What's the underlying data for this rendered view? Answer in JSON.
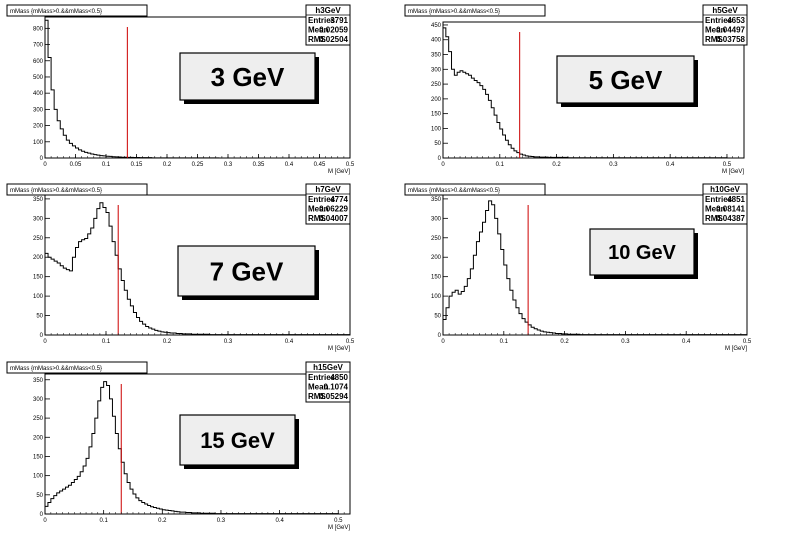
{
  "chart_data": [
    {
      "type": "histogram",
      "title": "mMass {mMass>0.&&mMass<0.5}",
      "xlabel": "M [GeV]",
      "xlim": [
        0,
        0.5
      ],
      "ylim": [
        0,
        870
      ],
      "xticks": [
        0,
        0.05,
        0.1,
        0.15,
        0.2,
        0.25,
        0.3,
        0.35,
        0.4,
        0.45,
        0.5
      ],
      "yticks": [
        0,
        100,
        200,
        300,
        400,
        500,
        600,
        700,
        800
      ],
      "stats": {
        "name": "h3GeV",
        "entries": "3791",
        "mean": "0.02059",
        "rms": "0.02504"
      },
      "label": "3 GeV",
      "cut_line": 0.135,
      "bins": 100,
      "values": [
        850,
        620,
        420,
        300,
        230,
        180,
        140,
        110,
        90,
        75,
        62,
        50,
        42,
        35,
        30,
        25,
        21,
        18,
        15,
        13,
        11,
        10,
        8,
        7,
        6,
        5,
        5,
        4,
        4,
        3,
        3,
        2,
        2,
        2,
        2,
        1,
        1,
        1,
        1,
        1,
        1,
        1,
        1,
        1,
        1,
        1,
        1,
        1,
        1,
        1,
        1,
        1,
        1,
        1,
        1,
        1,
        1,
        0,
        0,
        0,
        0,
        0,
        0,
        0,
        0,
        0,
        0,
        0,
        0,
        0,
        0,
        0,
        0,
        0,
        0,
        0,
        0,
        0,
        0,
        0,
        0,
        0,
        0,
        0,
        0,
        0,
        0,
        0,
        0,
        0,
        0,
        0,
        0,
        0,
        0,
        0,
        0,
        0,
        0,
        0
      ]
    },
    {
      "type": "histogram",
      "title": "mMass {mMass>0.&&mMass<0.5}",
      "xlabel": "M [GeV]",
      "xlim": [
        0,
        0.53
      ],
      "ylim": [
        0,
        460
      ],
      "xticks": [
        0,
        0.1,
        0.2,
        0.3,
        0.4,
        0.5
      ],
      "yticks": [
        0,
        50,
        100,
        150,
        200,
        250,
        300,
        350,
        400,
        450
      ],
      "stats": {
        "name": "h5GeV",
        "entries": "4653",
        "mean": "0.04497",
        "rms": "0.03758"
      },
      "label": "5 GeV",
      "cut_line": 0.135,
      "bins": 100,
      "values": [
        440,
        410,
        360,
        300,
        280,
        290,
        295,
        290,
        285,
        280,
        270,
        262,
        255,
        245,
        232,
        215,
        195,
        170,
        145,
        120,
        98,
        78,
        60,
        45,
        33,
        24,
        18,
        13,
        10,
        7,
        6,
        5,
        4,
        4,
        3,
        3,
        3,
        2,
        2,
        2,
        2,
        2,
        2,
        2,
        1,
        1,
        1,
        1,
        1,
        1,
        1,
        1,
        1,
        1,
        1,
        1,
        1,
        1,
        1,
        1,
        1,
        1,
        1,
        1,
        1,
        1,
        1,
        1,
        1,
        1,
        1,
        1,
        1,
        1,
        1,
        1,
        1,
        1,
        1,
        1,
        1,
        1,
        1,
        1,
        1,
        1,
        1,
        1,
        1,
        1,
        1,
        1,
        1,
        1,
        1,
        1,
        1,
        1,
        1,
        1
      ]
    },
    {
      "type": "histogram",
      "title": "mMass {mMass>0.&&mMass<0.5}",
      "xlabel": "M [GeV]",
      "xlim": [
        0,
        0.5
      ],
      "ylim": [
        0,
        360
      ],
      "xticks": [
        0,
        0.1,
        0.2,
        0.3,
        0.4,
        0.5
      ],
      "yticks": [
        0,
        50,
        100,
        150,
        200,
        250,
        300,
        350
      ],
      "stats": {
        "name": "h7GeV",
        "entries": "4774",
        "mean": "0.06229",
        "rms": "0.04007"
      },
      "label": "7 GeV",
      "cut_line": 0.12,
      "bins": 100,
      "values": [
        210,
        200,
        195,
        190,
        185,
        178,
        172,
        168,
        165,
        200,
        225,
        240,
        245,
        248,
        260,
        275,
        300,
        325,
        340,
        328,
        315,
        280,
        240,
        205,
        170,
        140,
        115,
        92,
        75,
        58,
        45,
        35,
        28,
        22,
        18,
        15,
        12,
        10,
        8,
        7,
        6,
        5,
        5,
        4,
        4,
        3,
        3,
        3,
        2,
        2,
        2,
        2,
        2,
        2,
        1,
        1,
        1,
        1,
        1,
        1,
        1,
        1,
        1,
        1,
        1,
        1,
        1,
        1,
        1,
        1,
        1,
        1,
        1,
        1,
        1,
        1,
        1,
        1,
        1,
        1,
        1,
        1,
        1,
        1,
        1,
        1,
        1,
        1,
        1,
        1,
        1,
        1,
        1,
        1,
        1,
        1,
        1,
        1,
        1,
        1
      ]
    },
    {
      "type": "histogram",
      "title": "mMass {mMass>0.&&mMass<0.5}",
      "xlabel": "M [GeV]",
      "xlim": [
        0,
        0.5
      ],
      "ylim": [
        0,
        360
      ],
      "xticks": [
        0,
        0.1,
        0.2,
        0.3,
        0.4,
        0.5
      ],
      "yticks": [
        0,
        50,
        100,
        150,
        200,
        250,
        300,
        350
      ],
      "stats": {
        "name": "h10GeV",
        "entries": "4851",
        "mean": "0.08141",
        "rms": "0.04387"
      },
      "label": "10 GeV",
      "cut_line": 0.14,
      "bins": 100,
      "values": [
        40,
        70,
        100,
        110,
        115,
        105,
        112,
        125,
        145,
        170,
        205,
        240,
        265,
        290,
        320,
        345,
        335,
        300,
        260,
        220,
        180,
        145,
        115,
        90,
        70,
        55,
        42,
        33,
        26,
        20,
        16,
        13,
        10,
        8,
        7,
        6,
        5,
        4,
        4,
        3,
        3,
        2,
        2,
        2,
        2,
        1,
        1,
        1,
        1,
        1,
        1,
        1,
        1,
        1,
        1,
        1,
        1,
        1,
        1,
        1,
        1,
        1,
        1,
        1,
        1,
        1,
        1,
        1,
        1,
        1,
        1,
        1,
        1,
        1,
        1,
        1,
        1,
        1,
        1,
        1,
        1,
        1,
        1,
        1,
        1,
        1,
        1,
        1,
        1,
        1,
        1,
        1,
        1,
        1,
        1,
        1,
        1,
        1,
        1,
        1
      ]
    },
    {
      "type": "histogram",
      "title": "mMass {mMass>0.&&mMass<0.5}",
      "xlabel": "M [GeV]",
      "xlim": [
        0,
        0.52
      ],
      "ylim": [
        0,
        365
      ],
      "xticks": [
        0,
        0.1,
        0.2,
        0.3,
        0.4,
        0.5
      ],
      "yticks": [
        0,
        50,
        100,
        150,
        200,
        250,
        300,
        350
      ],
      "stats": {
        "name": "h15GeV",
        "entries": "4850",
        "mean": "0.1074",
        "rms": "0.05294"
      },
      "label": "15 GeV",
      "cut_line": 0.13,
      "bins": 100,
      "values": [
        20,
        30,
        40,
        48,
        55,
        60,
        65,
        70,
        75,
        82,
        90,
        98,
        110,
        125,
        145,
        175,
        210,
        250,
        295,
        330,
        345,
        335,
        300,
        255,
        210,
        170,
        135,
        105,
        82,
        65,
        52,
        42,
        35,
        30,
        26,
        22,
        19,
        17,
        15,
        13,
        11,
        10,
        9,
        8,
        7,
        6,
        5,
        5,
        4,
        4,
        3,
        3,
        3,
        2,
        2,
        2,
        2,
        2,
        1,
        1,
        1,
        1,
        1,
        1,
        1,
        1,
        1,
        1,
        1,
        1,
        1,
        1,
        1,
        1,
        1,
        1,
        1,
        1,
        1,
        1,
        1,
        1,
        1,
        1,
        1,
        1,
        1,
        1,
        1,
        1,
        1,
        1,
        1,
        1,
        1,
        1,
        1,
        1,
        1,
        1
      ]
    }
  ],
  "stats_labels": {
    "entries": "Entries",
    "mean": "Mean",
    "rms": "RMS"
  },
  "colors": {
    "hist": "#000000",
    "cut_line": "#cc0000",
    "label_bg": "#eeeeee",
    "frame": "#000000"
  }
}
